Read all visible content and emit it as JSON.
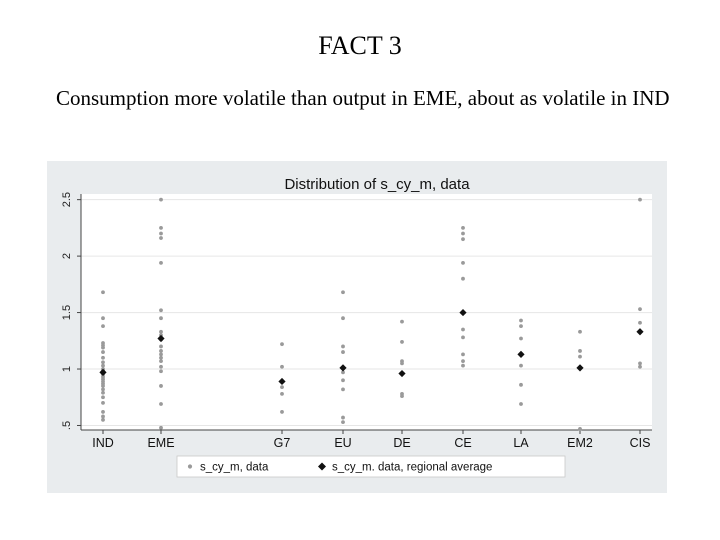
{
  "slide": {
    "title": "FACT 3",
    "bullet": "Consumption more volatile than output in EME, about as volatile in IND"
  },
  "chart_data": {
    "type": "scatter",
    "title": "Distribution of s_cy_m, data",
    "categories": [
      "IND",
      "EME",
      "G7",
      "EU",
      "DE",
      "CE",
      "LA",
      "EM2",
      "CIS"
    ],
    "y_ticks": [
      0.5,
      1,
      1.5,
      2,
      2.5
    ],
    "y_tick_labels": [
      ".5",
      "1",
      "1.5",
      "2",
      "2.5"
    ],
    "ylim": [
      0.46,
      2.55
    ],
    "grid": true,
    "legend_position": "bottom",
    "colors": {
      "panel": "#e9ecee",
      "plot": "#ffffff",
      "grid": "#e6e6e6",
      "data_points": "#9a9a9a",
      "average": "#111111"
    },
    "series": [
      {
        "name": "s_cy_m, data",
        "marker": "dot",
        "points": {
          "IND": [
            1.68,
            1.45,
            1.38,
            1.23,
            1.21,
            1.19,
            1.15,
            1.1,
            1.06,
            1.03,
            1.0,
            0.99,
            0.97,
            0.95,
            0.93,
            0.91,
            0.89,
            0.87,
            0.85,
            0.82,
            0.79,
            0.75,
            0.7,
            0.62,
            0.58,
            0.55
          ],
          "EME": [
            2.5,
            2.25,
            2.2,
            2.16,
            1.94,
            1.52,
            1.45,
            1.33,
            1.3,
            1.26,
            1.2,
            1.16,
            1.13,
            1.1,
            1.07,
            1.02,
            0.98,
            0.85,
            0.69,
            0.48
          ],
          "G7": [
            1.22,
            1.02,
            0.84,
            0.78,
            0.62
          ],
          "EU": [
            1.68,
            1.45,
            1.2,
            1.15,
            0.97,
            0.9,
            0.82,
            0.57,
            0.53
          ],
          "DE": [
            1.42,
            1.24,
            1.07,
            1.05,
            0.78,
            0.76
          ],
          "CE": [
            2.25,
            2.2,
            2.15,
            1.94,
            1.8,
            1.35,
            1.28,
            1.13,
            1.07,
            1.03
          ],
          "LA": [
            1.43,
            1.38,
            1.27,
            1.03,
            0.86,
            0.69
          ],
          "EM2": [
            1.33,
            1.16,
            1.11,
            0.47
          ],
          "CIS": [
            2.5,
            1.53,
            1.41,
            1.05,
            1.02
          ]
        }
      },
      {
        "name": "s_cy_m. data, regional average",
        "marker": "diamond",
        "values": [
          0.97,
          1.27,
          0.89,
          1.01,
          0.96,
          1.5,
          1.13,
          1.01,
          1.33
        ]
      }
    ]
  }
}
